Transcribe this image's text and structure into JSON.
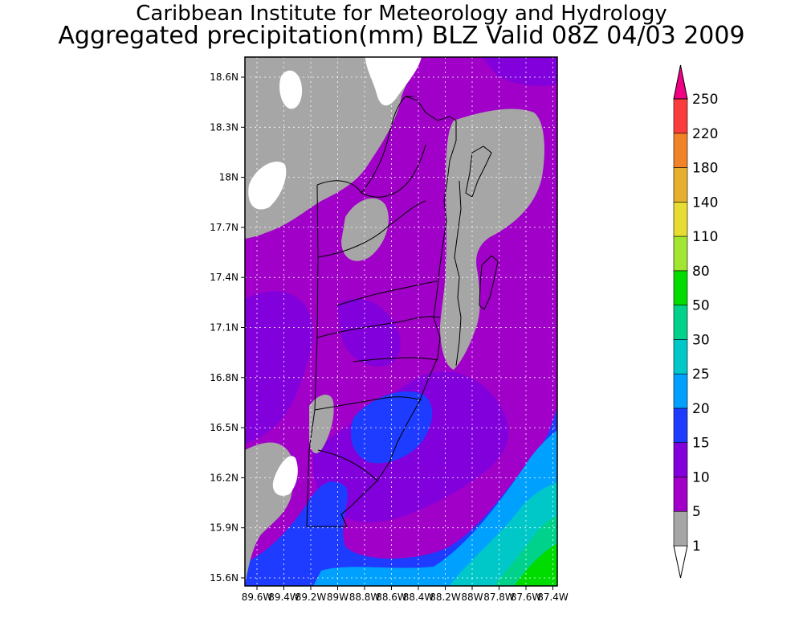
{
  "title_line1": "Caribbean Institute for Meteorology and Hydrology",
  "title_line2": "Aggregated precipitation(mm) BLZ Valid 08Z 04/03 2009",
  "lat_labels": [
    "18.6N",
    "18.3N",
    "18N",
    "17.7N",
    "17.4N",
    "17.1N",
    "16.8N",
    "16.5N",
    "16.2N",
    "15.9N",
    "15.6N"
  ],
  "lon_labels": [
    "89.6W",
    "89.4W",
    "89.2W",
    "89W",
    "88.8W",
    "88.6W",
    "88.4W",
    "88.2W",
    "88W",
    "87.8W",
    "87.6W",
    "87.4W"
  ],
  "colorbar": {
    "levels": [
      "1",
      "5",
      "10",
      "15",
      "20",
      "25",
      "30",
      "50",
      "80",
      "110",
      "140",
      "180",
      "220",
      "250"
    ],
    "colors": [
      "#ffffff",
      "#a6a6a6",
      "#a000c8",
      "#8200dc",
      "#1e3cff",
      "#00a0ff",
      "#00c8c8",
      "#00d28c",
      "#00dc00",
      "#a0e632",
      "#e6dc32",
      "#e6af2d",
      "#f08228",
      "#fa3c3c",
      "#f00082"
    ]
  },
  "map_colors": {
    "none": "#ffffff",
    "light": "#a6a6a6",
    "p5_10": "#a000c8",
    "p10_15": "#8200dc",
    "p15_20": "#1e3cff",
    "p20_25": "#00a0ff",
    "p25_30": "#00c8c8",
    "p30_50": "#00d28c",
    "p50_80": "#00dc00"
  }
}
